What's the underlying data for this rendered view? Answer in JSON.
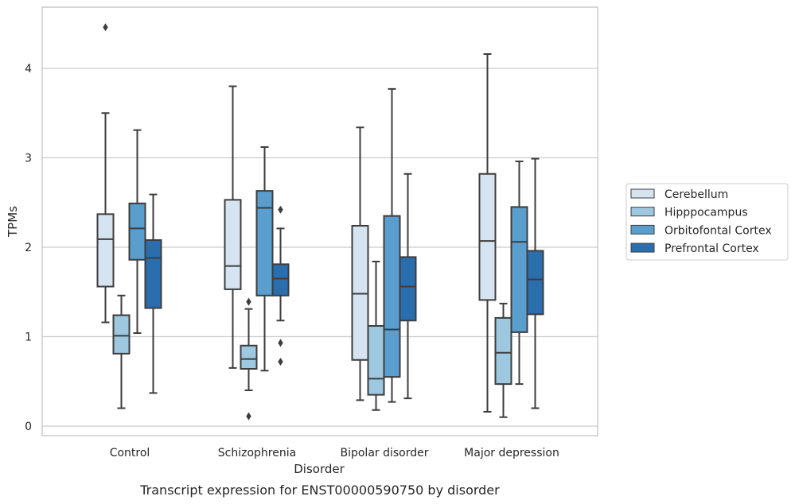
{
  "chart_data": {
    "type": "box",
    "caption": "Transcript expression for ENST00000590750 by disorder",
    "xlabel": "Disorder",
    "ylabel": "TPMs",
    "ylim": [
      -0.1,
      4.7
    ],
    "yticks": [
      0,
      1,
      2,
      3,
      4
    ],
    "grid": true,
    "legend_position": "right",
    "categories": [
      "Control",
      "Schizophrenia",
      "Bipolar disorder",
      "Major depression"
    ],
    "series": [
      {
        "name": "Cerebellum",
        "color": "#d6e4f2",
        "boxes": [
          {
            "whisker_low": 1.16,
            "q1": 1.56,
            "median": 2.09,
            "q3": 2.37,
            "whisker_high": 3.5,
            "outliers": [
              4.46
            ]
          },
          {
            "whisker_low": 0.65,
            "q1": 1.53,
            "median": 1.79,
            "q3": 2.53,
            "whisker_high": 3.8,
            "outliers": []
          },
          {
            "whisker_low": 0.29,
            "q1": 0.74,
            "median": 1.48,
            "q3": 2.24,
            "whisker_high": 3.34,
            "outliers": []
          },
          {
            "whisker_low": 0.16,
            "q1": 1.41,
            "median": 2.07,
            "q3": 2.82,
            "whisker_high": 4.16,
            "outliers": []
          }
        ]
      },
      {
        "name": "Hipppocampus",
        "color": "#9ec8e0",
        "boxes": [
          {
            "whisker_low": 0.2,
            "q1": 0.81,
            "median": 1.01,
            "q3": 1.24,
            "whisker_high": 1.46,
            "outliers": []
          },
          {
            "whisker_low": 0.4,
            "q1": 0.64,
            "median": 0.75,
            "q3": 0.9,
            "whisker_high": 1.31,
            "outliers": [
              1.39,
              0.11
            ]
          },
          {
            "whisker_low": 0.18,
            "q1": 0.35,
            "median": 0.53,
            "q3": 1.12,
            "whisker_high": 1.84,
            "outliers": []
          },
          {
            "whisker_low": 0.1,
            "q1": 0.47,
            "median": 0.82,
            "q3": 1.21,
            "whisker_high": 1.37,
            "outliers": []
          }
        ]
      },
      {
        "name": "Orbitofontal Cortex",
        "color": "#5a9ecd",
        "boxes": [
          {
            "whisker_low": 1.04,
            "q1": 1.86,
            "median": 2.21,
            "q3": 2.49,
            "whisker_high": 3.31,
            "outliers": []
          },
          {
            "whisker_low": 0.62,
            "q1": 1.46,
            "median": 2.44,
            "q3": 2.63,
            "whisker_high": 3.12,
            "outliers": []
          },
          {
            "whisker_low": 0.27,
            "q1": 0.55,
            "median": 1.08,
            "q3": 2.35,
            "whisker_high": 3.77,
            "outliers": []
          },
          {
            "whisker_low": 0.47,
            "q1": 1.05,
            "median": 2.06,
            "q3": 2.45,
            "whisker_high": 2.96,
            "outliers": []
          }
        ]
      },
      {
        "name": "Prefrontal Cortex",
        "color": "#2b6eae",
        "boxes": [
          {
            "whisker_low": 0.37,
            "q1": 1.32,
            "median": 1.88,
            "q3": 2.08,
            "whisker_high": 2.59,
            "outliers": []
          },
          {
            "whisker_low": 1.18,
            "q1": 1.46,
            "median": 1.65,
            "q3": 1.81,
            "whisker_high": 2.21,
            "outliers": [
              2.42,
              0.93,
              0.72
            ]
          },
          {
            "whisker_low": 0.31,
            "q1": 1.18,
            "median": 1.56,
            "q3": 1.89,
            "whisker_high": 2.82,
            "outliers": []
          },
          {
            "whisker_low": 0.2,
            "q1": 1.25,
            "median": 1.64,
            "q3": 1.96,
            "whisker_high": 2.99,
            "outliers": []
          }
        ]
      }
    ]
  }
}
